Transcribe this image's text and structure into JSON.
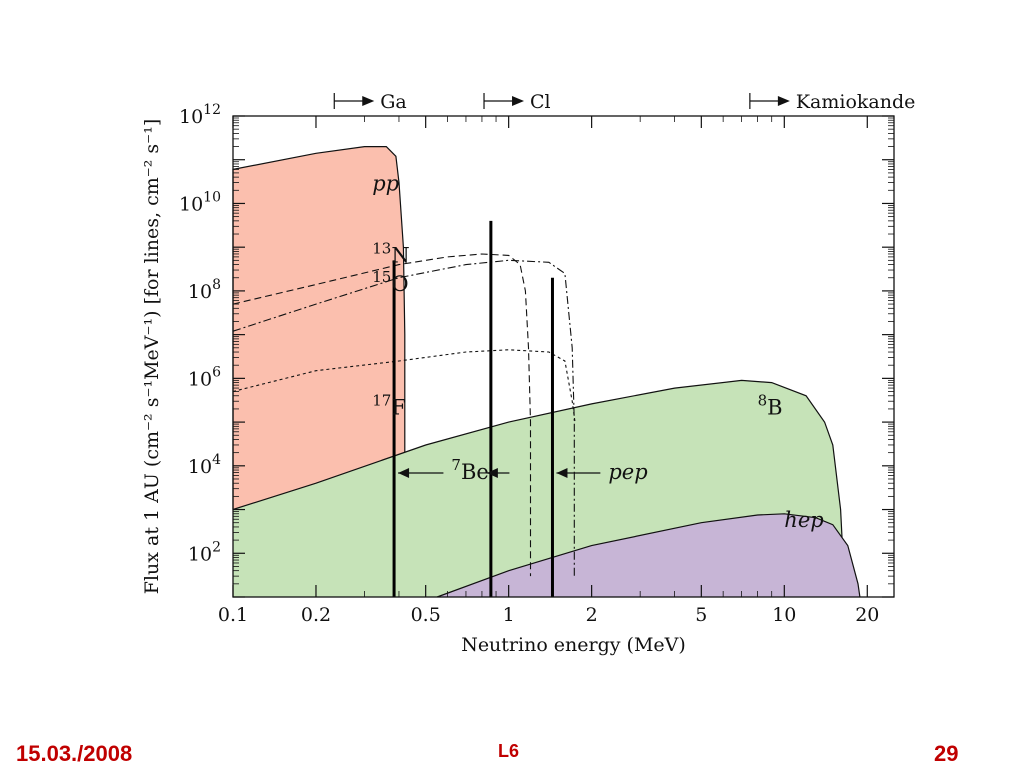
{
  "colors": {
    "pp": "#fbbfae",
    "B8": "#c6e3b8",
    "hep": "#c7b5d6",
    "footer": "#c00000"
  },
  "chart_data": {
    "type": "area",
    "xscale": "log",
    "yscale": "log",
    "xlabel": "Neutrino energy (MeV)",
    "ylabel": "Flux at 1 AU (cm⁻² s⁻¹MeV⁻¹) [for lines, cm⁻² s⁻¹]",
    "xlim": [
      0.1,
      25
    ],
    "ylim": [
      10,
      1000000000000.0
    ],
    "xticks": [
      {
        "v": 0.1,
        "label": "0.1"
      },
      {
        "v": 0.2,
        "label": "0.2"
      },
      {
        "v": 0.5,
        "label": "0.5"
      },
      {
        "v": 1,
        "label": "1"
      },
      {
        "v": 2,
        "label": "2"
      },
      {
        "v": 5,
        "label": "5"
      },
      {
        "v": 10,
        "label": "10"
      },
      {
        "v": 20,
        "label": "20"
      }
    ],
    "yticks": [
      {
        "exp": 2,
        "label": "10",
        "sup": "2"
      },
      {
        "exp": 4,
        "label": "10",
        "sup": "4"
      },
      {
        "exp": 6,
        "label": "10",
        "sup": "6"
      },
      {
        "exp": 8,
        "label": "10",
        "sup": "8"
      },
      {
        "exp": 10,
        "label": "10",
        "sup": "10"
      },
      {
        "exp": 12,
        "label": "10",
        "sup": "12"
      }
    ],
    "thresholds": [
      {
        "name": "Ga",
        "label": "Ga",
        "x": 0.233
      },
      {
        "name": "Cl",
        "label": "Cl",
        "x": 0.814
      },
      {
        "name": "Kamiokande",
        "label": "Kamiokande",
        "x": 7.5
      }
    ],
    "series": [
      {
        "name": "pp",
        "label": "pp",
        "style": "filled",
        "color": "#fbbfae",
        "points": [
          [
            0.1,
            1000.0
          ],
          [
            0.1,
            60000000000.0
          ],
          [
            0.2,
            140000000000.0
          ],
          [
            0.3,
            200000000000.0
          ],
          [
            0.36,
            200000000000.0
          ],
          [
            0.39,
            120000000000.0
          ],
          [
            0.4,
            30000000000.0
          ],
          [
            0.415,
            1000000000.0
          ],
          [
            0.42,
            10000000.0
          ],
          [
            0.42,
            10
          ]
        ],
        "lower": [
          [
            0.42,
            10
          ],
          [
            0.1,
            10
          ]
        ]
      },
      {
        "name": "8B",
        "label": "B",
        "sup": "8",
        "style": "filled",
        "color": "#c6e3b8",
        "points": [
          [
            0.1,
            1000.0
          ],
          [
            0.2,
            4000.0
          ],
          [
            0.5,
            30000.0
          ],
          [
            1,
            100000.0
          ],
          [
            2,
            260000.0
          ],
          [
            4,
            600000.0
          ],
          [
            7,
            900000.0
          ],
          [
            9,
            800000.0
          ],
          [
            12,
            400000.0
          ],
          [
            14,
            100000.0
          ],
          [
            15,
            30000.0
          ],
          [
            16,
            1000.0
          ],
          [
            16.3,
            100
          ],
          [
            16.5,
            10
          ]
        ],
        "lower": [
          [
            16.5,
            10
          ],
          [
            0.1,
            10
          ]
        ]
      },
      {
        "name": "hep",
        "label": "hep",
        "style": "filled",
        "color": "#c7b5d6",
        "points": [
          [
            0.55,
            10
          ],
          [
            1,
            40
          ],
          [
            2,
            150
          ],
          [
            5,
            500
          ],
          [
            8,
            750
          ],
          [
            10,
            800
          ],
          [
            13,
            650
          ],
          [
            15,
            450
          ],
          [
            17,
            150
          ],
          [
            18.5,
            20
          ],
          [
            18.8,
            10
          ]
        ],
        "lower": [
          [
            18.8,
            10
          ],
          [
            0.55,
            10
          ]
        ]
      },
      {
        "name": "13N",
        "label": "N",
        "sup": "13",
        "style": "dashed",
        "points": [
          [
            0.1,
            50000000.0
          ],
          [
            0.2,
            140000000.0
          ],
          [
            0.4,
            400000000.0
          ],
          [
            0.6,
            600000000.0
          ],
          [
            0.8,
            700000000.0
          ],
          [
            1.0,
            650000000.0
          ],
          [
            1.1,
            400000000.0
          ],
          [
            1.15,
            100000000.0
          ],
          [
            1.18,
            5000000.0
          ],
          [
            1.2,
            100000.0
          ],
          [
            1.2,
            10000.0
          ],
          [
            1.2,
            30
          ]
        ]
      },
      {
        "name": "15O",
        "label": "O",
        "sup": "15",
        "style": "dash-dot",
        "points": [
          [
            0.1,
            12000000.0
          ],
          [
            0.2,
            50000000.0
          ],
          [
            0.4,
            200000000.0
          ],
          [
            0.7,
            400000000.0
          ],
          [
            1.0,
            500000000.0
          ],
          [
            1.4,
            450000000.0
          ],
          [
            1.6,
            250000000.0
          ],
          [
            1.7,
            5000000.0
          ],
          [
            1.73,
            100000.0
          ],
          [
            1.73,
            30
          ]
        ]
      },
      {
        "name": "17F",
        "label": "F",
        "sup": "17",
        "style": "dotted",
        "points": [
          [
            0.1,
            500000.0
          ],
          [
            0.2,
            1500000.0
          ],
          [
            0.4,
            2500000.0
          ],
          [
            0.7,
            4000000.0
          ],
          [
            1.0,
            4500000.0
          ],
          [
            1.4,
            4000000.0
          ],
          [
            1.6,
            2500000.0
          ],
          [
            1.7,
            300000.0
          ],
          [
            1.74,
            100000.0
          ]
        ]
      }
    ],
    "lines": [
      {
        "name": "7Be-384",
        "x": 0.384,
        "y": 500000000.0
      },
      {
        "name": "7Be-862",
        "x": 0.862,
        "y": 4000000000.0
      },
      {
        "name": "pep",
        "x": 1.442,
        "y": 200000000.0
      }
    ],
    "annotations": [
      {
        "name": "pp",
        "label": "pp",
        "x": 0.32,
        "y": 20000000000.0,
        "italic": true
      },
      {
        "name": "13N",
        "label": "N",
        "sup": "13",
        "x": 0.32,
        "y": 450000000.0
      },
      {
        "name": "15O",
        "label": "O",
        "sup": "15",
        "x": 0.32,
        "y": 100000000.0
      },
      {
        "name": "17F",
        "label": "F",
        "sup": "17",
        "x": 0.32,
        "y": 150000.0
      },
      {
        "name": "8B",
        "label": "B",
        "sup": "8",
        "x": 8,
        "y": 150000.0
      },
      {
        "name": "hep",
        "label": "hep",
        "x": 10,
        "y": 400,
        "italic": true
      },
      {
        "name": "7Be",
        "label": "Be",
        "sup": "7",
        "x": 0.62,
        "y": 5000.0
      },
      {
        "name": "pep",
        "label": "pep",
        "x": 2.3,
        "y": 5000.0,
        "italic": true
      }
    ]
  },
  "footer": {
    "date": "15.03./2008",
    "mid": "L6",
    "page": "29"
  }
}
